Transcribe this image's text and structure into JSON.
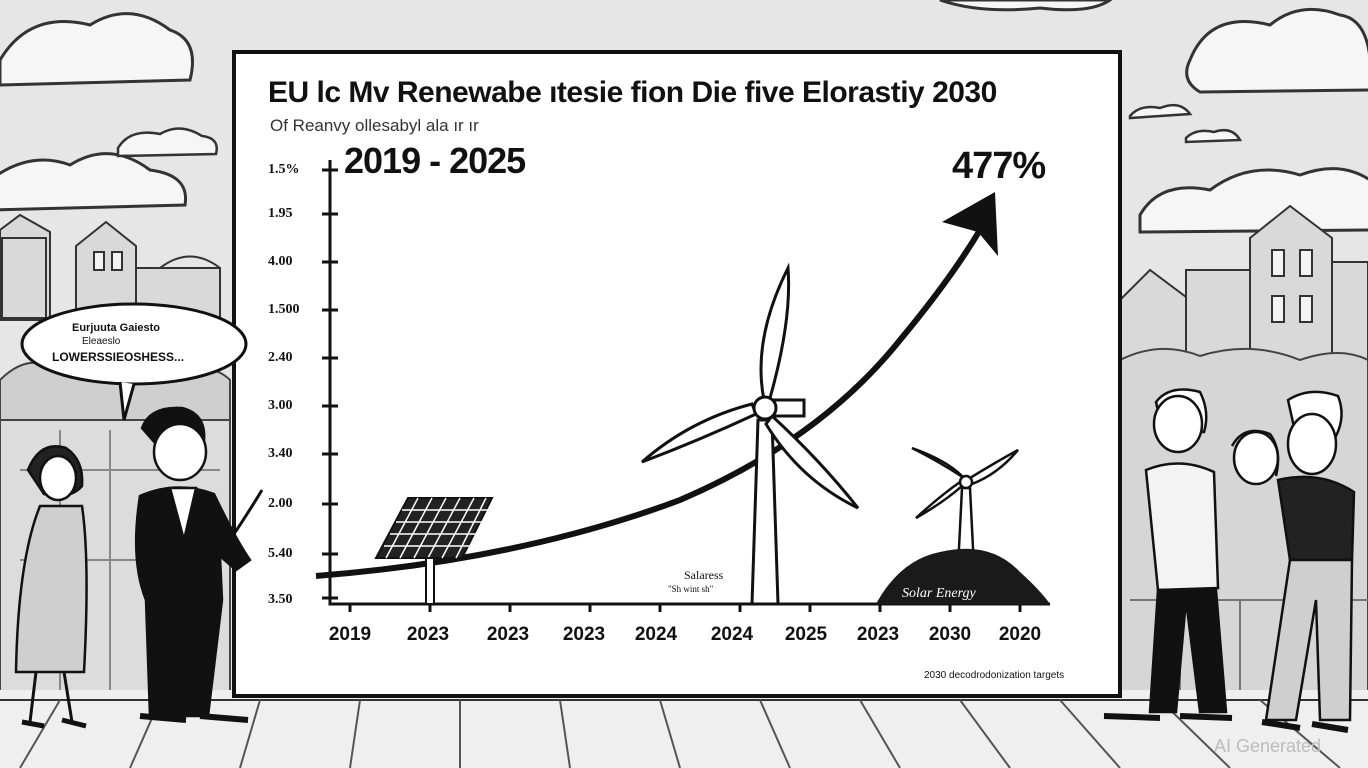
{
  "board": {
    "title": "EU lc Mv Renewabe ıtesie fion Die five Elorastiy 2030",
    "subtitle": "Of Reanvy ollesabyl ala ır ır",
    "period": "2019 - 2025",
    "percent": "477%",
    "y_ticks": [
      "1.5%",
      "1.95",
      "4.00",
      "1.500",
      "2.40",
      "3.00",
      "3.40",
      "2.00",
      "5.40",
      "3.50"
    ],
    "x_ticks": [
      "2019",
      "2023",
      "2023",
      "2023",
      "2024",
      "2024",
      "2025",
      "2023",
      "2030",
      "2020"
    ],
    "solar_energy_label": "Solar   Energy",
    "salaress_label": "Salaress",
    "wind_sub_label": "\"Sh wint sh\"",
    "targets_note": "2030 decodrodonization targets"
  },
  "speech_bubble": {
    "line1": "Eurjuuta Gaiesto",
    "line2": "Eleaeslo",
    "line3": "LOWERSSIEOSHESS..."
  },
  "watermark": "AI Generated",
  "colors": {
    "background": "#e9e9e9",
    "board": "#ffffff",
    "ink": "#111111"
  }
}
